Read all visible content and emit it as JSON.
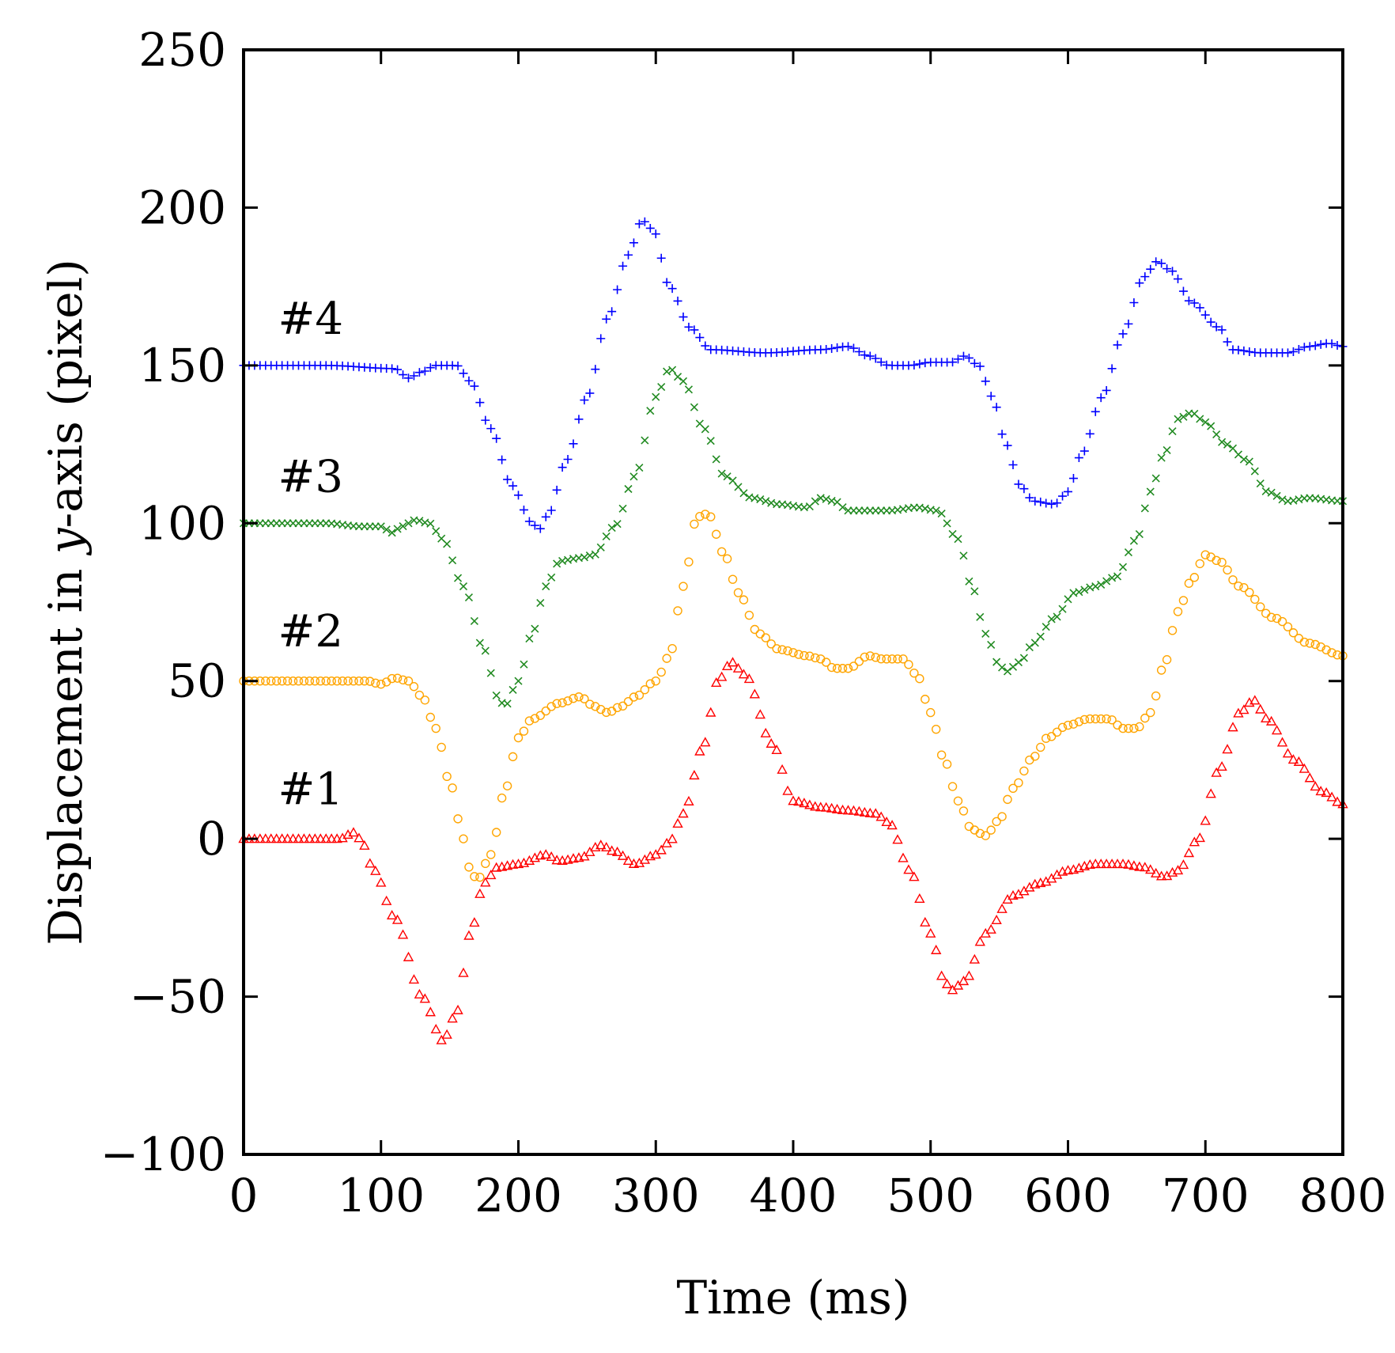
{
  "chart_data": {
    "type": "scatter",
    "title": "",
    "xlabel": "Time (ms)",
    "ylabel": "Displacement in y-axis (pixel)",
    "ylabel_parts": {
      "before": "Displacement in ",
      "italic": "y",
      "after": "-axis (pixel)"
    },
    "xlim": [
      0,
      800
    ],
    "ylim": [
      -100,
      250
    ],
    "xticks": [
      0,
      100,
      200,
      300,
      400,
      500,
      600,
      700,
      800
    ],
    "yticks": [
      -100,
      -50,
      0,
      50,
      100,
      150,
      200,
      250
    ],
    "ytick_labels": [
      "−100",
      "−50",
      "0",
      "50",
      "100",
      "150",
      "200",
      "250"
    ],
    "grid": false,
    "sample_interval_ms": 4,
    "series": [
      {
        "name": "#1",
        "color": "#ff0000",
        "marker": "triangle",
        "label_at": {
          "x": 25,
          "y": 11
        },
        "points": [
          [
            0,
            0
          ],
          [
            70,
            0
          ],
          [
            80,
            2
          ],
          [
            85,
            0
          ],
          [
            95,
            -10
          ],
          [
            110,
            -25
          ],
          [
            130,
            -50
          ],
          [
            145,
            -64
          ],
          [
            155,
            -55
          ],
          [
            165,
            -30
          ],
          [
            175,
            -14
          ],
          [
            185,
            -9
          ],
          [
            200,
            -8
          ],
          [
            220,
            -5
          ],
          [
            230,
            -7
          ],
          [
            245,
            -6
          ],
          [
            260,
            -2
          ],
          [
            270,
            -4
          ],
          [
            285,
            -8
          ],
          [
            300,
            -5
          ],
          [
            310,
            -1
          ],
          [
            320,
            8
          ],
          [
            335,
            30
          ],
          [
            345,
            50
          ],
          [
            355,
            56
          ],
          [
            365,
            52
          ],
          [
            385,
            30
          ],
          [
            400,
            12
          ],
          [
            420,
            10
          ],
          [
            440,
            9
          ],
          [
            460,
            8
          ],
          [
            470,
            5
          ],
          [
            485,
            -10
          ],
          [
            500,
            -30
          ],
          [
            510,
            -45
          ],
          [
            515,
            -48
          ],
          [
            525,
            -45
          ],
          [
            540,
            -30
          ],
          [
            560,
            -18
          ],
          [
            580,
            -14
          ],
          [
            600,
            -10
          ],
          [
            620,
            -8
          ],
          [
            640,
            -8
          ],
          [
            655,
            -9
          ],
          [
            670,
            -12
          ],
          [
            680,
            -10
          ],
          [
            695,
            0
          ],
          [
            710,
            22
          ],
          [
            725,
            40
          ],
          [
            735,
            44
          ],
          [
            745,
            38
          ],
          [
            765,
            25
          ],
          [
            785,
            15
          ],
          [
            800,
            11
          ]
        ]
      },
      {
        "name": "#2",
        "color": "#ffa500",
        "marker": "circle",
        "label_at": {
          "x": 25,
          "y": 61
        },
        "points": [
          [
            0,
            50
          ],
          [
            90,
            50
          ],
          [
            100,
            49
          ],
          [
            110,
            51
          ],
          [
            120,
            50
          ],
          [
            130,
            45
          ],
          [
            140,
            35
          ],
          [
            150,
            18
          ],
          [
            160,
            0
          ],
          [
            165,
            -10
          ],
          [
            170,
            -13
          ],
          [
            180,
            -5
          ],
          [
            190,
            15
          ],
          [
            200,
            32
          ],
          [
            210,
            38
          ],
          [
            230,
            43
          ],
          [
            245,
            45
          ],
          [
            255,
            42
          ],
          [
            265,
            40
          ],
          [
            275,
            42
          ],
          [
            285,
            45
          ],
          [
            300,
            50
          ],
          [
            310,
            58
          ],
          [
            320,
            80
          ],
          [
            330,
            102
          ],
          [
            338,
            103
          ],
          [
            350,
            90
          ],
          [
            360,
            78
          ],
          [
            375,
            65
          ],
          [
            390,
            60
          ],
          [
            410,
            58
          ],
          [
            420,
            57
          ],
          [
            430,
            54
          ],
          [
            440,
            54
          ],
          [
            455,
            58
          ],
          [
            465,
            57
          ],
          [
            480,
            57
          ],
          [
            490,
            52
          ],
          [
            500,
            40
          ],
          [
            510,
            25
          ],
          [
            520,
            12
          ],
          [
            530,
            3
          ],
          [
            540,
            1
          ],
          [
            550,
            6
          ],
          [
            560,
            16
          ],
          [
            575,
            26
          ],
          [
            585,
            32
          ],
          [
            600,
            36
          ],
          [
            615,
            38
          ],
          [
            630,
            38
          ],
          [
            640,
            35
          ],
          [
            650,
            35
          ],
          [
            660,
            40
          ],
          [
            670,
            55
          ],
          [
            680,
            72
          ],
          [
            690,
            82
          ],
          [
            700,
            90
          ],
          [
            710,
            88
          ],
          [
            725,
            80
          ],
          [
            750,
            70
          ],
          [
            775,
            62
          ],
          [
            800,
            58
          ]
        ]
      },
      {
        "name": "#3",
        "color": "#228b22",
        "marker": "cross",
        "label_at": {
          "x": 25,
          "y": 110
        },
        "points": [
          [
            0,
            100
          ],
          [
            60,
            100
          ],
          [
            85,
            99
          ],
          [
            100,
            99
          ],
          [
            108,
            97
          ],
          [
            115,
            99
          ],
          [
            125,
            101
          ],
          [
            135,
            100
          ],
          [
            145,
            95
          ],
          [
            160,
            80
          ],
          [
            175,
            60
          ],
          [
            185,
            45
          ],
          [
            190,
            42
          ],
          [
            200,
            50
          ],
          [
            210,
            65
          ],
          [
            220,
            80
          ],
          [
            230,
            88
          ],
          [
            245,
            89
          ],
          [
            255,
            90
          ],
          [
            270,
            99
          ],
          [
            285,
            115
          ],
          [
            300,
            140
          ],
          [
            310,
            149
          ],
          [
            320,
            145
          ],
          [
            335,
            130
          ],
          [
            350,
            115
          ],
          [
            370,
            108
          ],
          [
            390,
            106
          ],
          [
            410,
            105
          ],
          [
            420,
            108
          ],
          [
            430,
            107
          ],
          [
            440,
            104
          ],
          [
            455,
            104
          ],
          [
            470,
            104
          ],
          [
            490,
            105
          ],
          [
            505,
            104
          ],
          [
            520,
            95
          ],
          [
            530,
            80
          ],
          [
            540,
            65
          ],
          [
            550,
            55
          ],
          [
            555,
            53
          ],
          [
            565,
            56
          ],
          [
            575,
            62
          ],
          [
            590,
            70
          ],
          [
            605,
            78
          ],
          [
            620,
            80
          ],
          [
            635,
            83
          ],
          [
            650,
            95
          ],
          [
            660,
            110
          ],
          [
            670,
            122
          ],
          [
            680,
            133
          ],
          [
            690,
            135
          ],
          [
            700,
            132
          ],
          [
            715,
            125
          ],
          [
            730,
            120
          ],
          [
            745,
            110
          ],
          [
            760,
            107
          ],
          [
            775,
            108
          ],
          [
            800,
            107
          ]
        ]
      },
      {
        "name": "#4",
        "color": "#0000ff",
        "marker": "plus",
        "label_at": {
          "x": 25,
          "y": 160
        },
        "points": [
          [
            0,
            150
          ],
          [
            60,
            150
          ],
          [
            110,
            149
          ],
          [
            120,
            146
          ],
          [
            130,
            148
          ],
          [
            140,
            150
          ],
          [
            155,
            150
          ],
          [
            165,
            145
          ],
          [
            180,
            130
          ],
          [
            195,
            112
          ],
          [
            210,
            100
          ],
          [
            215,
            98
          ],
          [
            222,
            103
          ],
          [
            235,
            120
          ],
          [
            250,
            140
          ],
          [
            265,
            165
          ],
          [
            280,
            185
          ],
          [
            290,
            196
          ],
          [
            298,
            193
          ],
          [
            310,
            175
          ],
          [
            325,
            162
          ],
          [
            340,
            155
          ],
          [
            380,
            154
          ],
          [
            420,
            155
          ],
          [
            440,
            156
          ],
          [
            455,
            153
          ],
          [
            470,
            150
          ],
          [
            485,
            150
          ],
          [
            500,
            151
          ],
          [
            515,
            151
          ],
          [
            525,
            153
          ],
          [
            535,
            150
          ],
          [
            545,
            140
          ],
          [
            555,
            125
          ],
          [
            565,
            112
          ],
          [
            575,
            107
          ],
          [
            590,
            106
          ],
          [
            600,
            110
          ],
          [
            610,
            122
          ],
          [
            625,
            140
          ],
          [
            640,
            160
          ],
          [
            655,
            178
          ],
          [
            665,
            183
          ],
          [
            675,
            180
          ],
          [
            690,
            170
          ],
          [
            710,
            162
          ],
          [
            720,
            155
          ],
          [
            740,
            154
          ],
          [
            760,
            154
          ],
          [
            775,
            156
          ],
          [
            790,
            157
          ],
          [
            800,
            156
          ]
        ]
      }
    ]
  }
}
